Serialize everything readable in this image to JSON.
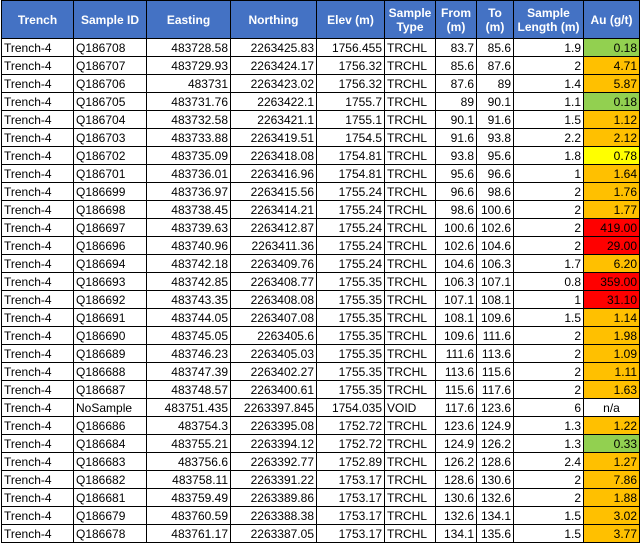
{
  "headers": [
    "Trench",
    "Sample ID",
    "Easting",
    "Northing",
    "Elev (m)",
    "Sample Type",
    "From (m)",
    "To (m)",
    "Sample Length (m)",
    "Au (g/t)"
  ],
  "rows": [
    [
      "Trench-4",
      "Q186708",
      "483728.58",
      "2263425.83",
      "1756.455",
      "TRCHL",
      "83.7",
      "85.6",
      "1.9",
      "0.18"
    ],
    [
      "Trench-4",
      "Q186707",
      "483729.93",
      "2263424.17",
      "1756.32",
      "TRCHL",
      "85.6",
      "87.6",
      "2",
      "4.71"
    ],
    [
      "Trench-4",
      "Q186706",
      "483731",
      "2263423.02",
      "1756.32",
      "TRCHL",
      "87.6",
      "89",
      "1.4",
      "5.87"
    ],
    [
      "Trench-4",
      "Q186705",
      "483731.76",
      "2263422.1",
      "1755.7",
      "TRCHL",
      "89",
      "90.1",
      "1.1",
      "0.18"
    ],
    [
      "Trench-4",
      "Q186704",
      "483732.58",
      "2263421.1",
      "1755.1",
      "TRCHL",
      "90.1",
      "91.6",
      "1.5",
      "1.12"
    ],
    [
      "Trench-4",
      "Q186703",
      "483733.88",
      "2263419.51",
      "1754.5",
      "TRCHL",
      "91.6",
      "93.8",
      "2.2",
      "2.12"
    ],
    [
      "Trench-4",
      "Q186702",
      "483735.09",
      "2263418.08",
      "1754.81",
      "TRCHL",
      "93.8",
      "95.6",
      "1.8",
      "0.78"
    ],
    [
      "Trench-4",
      "Q186701",
      "483736.01",
      "2263416.96",
      "1754.81",
      "TRCHL",
      "95.6",
      "96.6",
      "1",
      "1.64"
    ],
    [
      "Trench-4",
      "Q186699",
      "483736.97",
      "2263415.56",
      "1755.24",
      "TRCHL",
      "96.6",
      "98.6",
      "2",
      "1.76"
    ],
    [
      "Trench-4",
      "Q186698",
      "483738.45",
      "2263414.21",
      "1755.24",
      "TRCHL",
      "98.6",
      "100.6",
      "2",
      "1.77"
    ],
    [
      "Trench-4",
      "Q186697",
      "483739.63",
      "2263412.87",
      "1755.24",
      "TRCHL",
      "100.6",
      "102.6",
      "2",
      "419.00"
    ],
    [
      "Trench-4",
      "Q186696",
      "483740.96",
      "2263411.36",
      "1755.24",
      "TRCHL",
      "102.6",
      "104.6",
      "2",
      "29.00"
    ],
    [
      "Trench-4",
      "Q186694",
      "483742.18",
      "2263409.76",
      "1755.24",
      "TRCHL",
      "104.6",
      "106.3",
      "1.7",
      "6.20"
    ],
    [
      "Trench-4",
      "Q186693",
      "483742.85",
      "2263408.77",
      "1755.35",
      "TRCHL",
      "106.3",
      "107.1",
      "0.8",
      "359.00"
    ],
    [
      "Trench-4",
      "Q186692",
      "483743.35",
      "2263408.08",
      "1755.35",
      "TRCHL",
      "107.1",
      "108.1",
      "1",
      "31.10"
    ],
    [
      "Trench-4",
      "Q186691",
      "483744.05",
      "2263407.08",
      "1755.35",
      "TRCHL",
      "108.1",
      "109.6",
      "1.5",
      "1.14"
    ],
    [
      "Trench-4",
      "Q186690",
      "483745.05",
      "2263405.6",
      "1755.35",
      "TRCHL",
      "109.6",
      "111.6",
      "2",
      "1.98"
    ],
    [
      "Trench-4",
      "Q186689",
      "483746.23",
      "2263405.03",
      "1755.35",
      "TRCHL",
      "111.6",
      "113.6",
      "2",
      "1.09"
    ],
    [
      "Trench-4",
      "Q186688",
      "483747.39",
      "2263402.27",
      "1755.35",
      "TRCHL",
      "113.6",
      "115.6",
      "2",
      "1.11"
    ],
    [
      "Trench-4",
      "Q186687",
      "483748.57",
      "2263400.61",
      "1755.35",
      "TRCHL",
      "115.6",
      "117.6",
      "2",
      "1.63"
    ],
    [
      "Trench-4",
      "NoSample",
      "483751.435",
      "2263397.845",
      "1754.035",
      "VOID",
      "117.6",
      "123.6",
      "6",
      "n/a"
    ],
    [
      "Trench-4",
      "Q186686",
      "483754.3",
      "2263395.08",
      "1752.72",
      "TRCHL",
      "123.6",
      "124.9",
      "1.3",
      "1.22"
    ],
    [
      "Trench-4",
      "Q186684",
      "483755.21",
      "2263394.12",
      "1752.72",
      "TRCHL",
      "124.9",
      "126.2",
      "1.3",
      "0.33"
    ],
    [
      "Trench-4",
      "Q186683",
      "483756.6",
      "2263392.77",
      "1752.89",
      "TRCHL",
      "126.2",
      "128.6",
      "2.4",
      "1.27"
    ],
    [
      "Trench-4",
      "Q186682",
      "483758.11",
      "2263391.22",
      "1753.17",
      "TRCHL",
      "128.6",
      "130.6",
      "2",
      "7.86"
    ],
    [
      "Trench-4",
      "Q186681",
      "483759.49",
      "2263389.86",
      "1753.17",
      "TRCHL",
      "130.6",
      "132.6",
      "2",
      "1.88"
    ],
    [
      "Trench-4",
      "Q186679",
      "483760.59",
      "2263388.38",
      "1753.17",
      "TRCHL",
      "132.6",
      "134.1",
      "1.5",
      "3.02"
    ],
    [
      "Trench-4",
      "Q186678",
      "483761.17",
      "2263387.05",
      "1753.17",
      "TRCHL",
      "134.1",
      "135.6",
      "1.5",
      "3.77"
    ]
  ],
  "au_colors": [
    "#92d050",
    "#ffc000",
    "#ffc000",
    "#92d050",
    "#ffc000",
    "#ffc000",
    "#ffff00",
    "#ffc000",
    "#ffc000",
    "#ffc000",
    "#ff0000",
    "#ff0000",
    "#ffc000",
    "#ff0000",
    "#ff0000",
    "#ffc000",
    "#ffc000",
    "#ffc000",
    "#ffc000",
    "#ffc000",
    "#ffffff",
    "#ffc000",
    "#92d050",
    "#ffc000",
    "#ffc000",
    "#ffc000",
    "#ffc000",
    "#ffc000"
  ]
}
